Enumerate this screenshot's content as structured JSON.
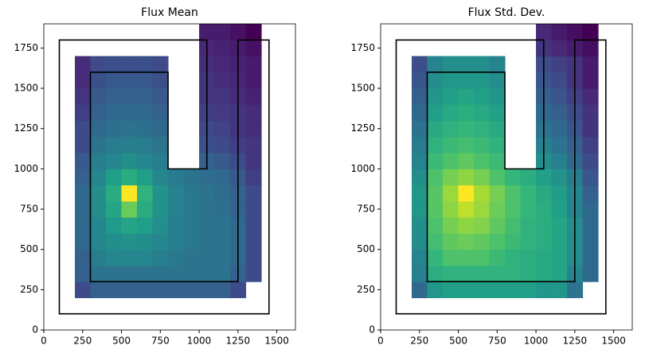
{
  "chart_data": [
    {
      "type": "heatmap",
      "title": "Flux Mean",
      "colormap": "viridis",
      "xlim": [
        0,
        1620
      ],
      "ylim": [
        0,
        1900
      ],
      "xticks": [
        0,
        250,
        500,
        750,
        1000,
        1250,
        1500
      ],
      "yticks": [
        0,
        250,
        500,
        750,
        1000,
        1250,
        1500,
        1750
      ],
      "xbins": [
        200,
        300,
        400,
        500,
        600,
        700,
        800,
        900,
        1000,
        1100,
        1200,
        1300,
        1400
      ],
      "ybins": [
        200,
        300,
        400,
        500,
        600,
        700,
        800,
        900,
        1000,
        1100,
        1200,
        1300,
        1400,
        1500,
        1600,
        1700,
        1800,
        1900
      ],
      "z": [
        [
          0.45,
          0.5,
          0.5,
          0.5,
          0.5,
          0.5,
          0.5,
          0.5,
          0.5,
          0.5,
          0.45,
          null
        ],
        [
          0.5,
          0.55,
          0.55,
          0.55,
          0.55,
          0.55,
          0.55,
          0.55,
          0.55,
          0.55,
          0.5,
          0.45
        ],
        [
          0.5,
          0.58,
          0.6,
          0.6,
          0.6,
          0.58,
          0.56,
          0.55,
          0.55,
          0.55,
          0.52,
          0.45
        ],
        [
          0.52,
          0.6,
          0.62,
          0.63,
          0.62,
          0.6,
          0.58,
          0.56,
          0.55,
          0.55,
          0.52,
          0.45
        ],
        [
          0.52,
          0.6,
          0.65,
          0.68,
          0.66,
          0.62,
          0.58,
          0.56,
          0.55,
          0.55,
          0.52,
          0.45
        ],
        [
          0.52,
          0.62,
          0.68,
          0.8,
          0.7,
          0.63,
          0.59,
          0.56,
          0.55,
          0.54,
          0.5,
          0.45
        ],
        [
          0.52,
          0.62,
          0.7,
          0.95,
          0.72,
          0.63,
          0.59,
          0.56,
          0.55,
          0.53,
          0.5,
          0.45
        ],
        [
          0.5,
          0.6,
          0.66,
          0.7,
          0.66,
          0.6,
          0.57,
          0.55,
          0.53,
          0.52,
          0.48,
          0.42
        ],
        [
          0.48,
          0.58,
          0.6,
          0.62,
          0.6,
          0.58,
          null,
          null,
          0.5,
          0.48,
          0.45,
          0.4
        ],
        [
          0.45,
          0.55,
          0.57,
          0.58,
          0.57,
          0.55,
          null,
          null,
          0.46,
          0.45,
          0.42,
          0.4
        ],
        [
          0.45,
          0.52,
          0.54,
          0.55,
          0.54,
          0.52,
          null,
          null,
          0.44,
          0.43,
          0.4,
          0.38
        ],
        [
          0.42,
          0.5,
          0.52,
          0.52,
          0.52,
          0.5,
          null,
          null,
          0.42,
          0.41,
          0.4,
          0.38
        ],
        [
          0.4,
          0.48,
          0.5,
          0.5,
          0.5,
          0.48,
          null,
          null,
          0.4,
          0.4,
          0.38,
          0.36
        ],
        [
          0.38,
          0.46,
          0.48,
          0.48,
          0.48,
          0.46,
          null,
          null,
          0.4,
          0.38,
          0.37,
          0.35
        ],
        [
          0.38,
          0.45,
          0.46,
          0.46,
          0.46,
          0.45,
          null,
          null,
          0.38,
          0.37,
          0.36,
          0.35
        ],
        [
          null,
          null,
          null,
          null,
          null,
          null,
          null,
          null,
          0.37,
          0.36,
          0.35,
          0.33
        ],
        [
          null,
          null,
          null,
          null,
          null,
          null,
          null,
          null,
          0.35,
          0.35,
          0.33,
          0.3
        ]
      ],
      "outline": {
        "color": "#000000",
        "x": [
          1050,
          1050,
          800,
          800,
          300,
          300,
          1250,
          1250,
          1450,
          1450,
          100,
          100,
          1050
        ],
        "y": [
          1800,
          1000,
          1000,
          1600,
          1600,
          300,
          300,
          1800,
          1800,
          100,
          100,
          1800,
          1800
        ]
      }
    },
    {
      "type": "heatmap",
      "title": "Flux Std. Dev.",
      "colormap": "viridis",
      "xlim": [
        0,
        1620
      ],
      "ylim": [
        0,
        1900
      ],
      "xticks": [
        0,
        250,
        500,
        750,
        1000,
        1250,
        1500
      ],
      "yticks": [
        0,
        250,
        500,
        750,
        1000,
        1250,
        1500,
        1750
      ],
      "xbins": [
        200,
        300,
        400,
        500,
        600,
        700,
        800,
        900,
        1000,
        1100,
        1200,
        1300,
        1400
      ],
      "ybins": [
        200,
        300,
        400,
        500,
        600,
        700,
        800,
        900,
        1000,
        1100,
        1200,
        1300,
        1400,
        1500,
        1600,
        1700,
        1800,
        1900
      ],
      "z": [
        [
          0.6,
          0.7,
          0.72,
          0.72,
          0.72,
          0.72,
          0.72,
          0.72,
          0.7,
          0.7,
          0.62,
          null
        ],
        [
          0.65,
          0.75,
          0.76,
          0.76,
          0.76,
          0.76,
          0.76,
          0.75,
          0.74,
          0.73,
          0.66,
          0.6
        ],
        [
          0.66,
          0.77,
          0.8,
          0.8,
          0.8,
          0.78,
          0.76,
          0.75,
          0.74,
          0.73,
          0.68,
          0.6
        ],
        [
          0.68,
          0.79,
          0.82,
          0.83,
          0.82,
          0.8,
          0.78,
          0.76,
          0.75,
          0.73,
          0.68,
          0.6
        ],
        [
          0.68,
          0.8,
          0.84,
          0.86,
          0.85,
          0.82,
          0.79,
          0.76,
          0.75,
          0.73,
          0.68,
          0.6
        ],
        [
          0.7,
          0.81,
          0.86,
          0.9,
          0.87,
          0.83,
          0.8,
          0.77,
          0.75,
          0.72,
          0.66,
          0.6
        ],
        [
          0.7,
          0.81,
          0.87,
          0.95,
          0.88,
          0.84,
          0.8,
          0.77,
          0.74,
          0.71,
          0.66,
          0.58
        ],
        [
          0.68,
          0.8,
          0.84,
          0.86,
          0.84,
          0.8,
          0.77,
          0.75,
          0.72,
          0.69,
          0.64,
          0.56
        ],
        [
          0.66,
          0.78,
          0.8,
          0.82,
          0.8,
          0.78,
          null,
          null,
          0.68,
          0.65,
          0.6,
          0.54
        ],
        [
          0.64,
          0.76,
          0.78,
          0.79,
          0.78,
          0.76,
          null,
          null,
          0.65,
          0.62,
          0.58,
          0.52
        ],
        [
          0.62,
          0.74,
          0.76,
          0.77,
          0.76,
          0.74,
          null,
          null,
          0.62,
          0.6,
          0.56,
          0.5
        ],
        [
          0.6,
          0.72,
          0.74,
          0.75,
          0.74,
          0.72,
          null,
          null,
          0.6,
          0.58,
          0.54,
          0.5
        ],
        [
          0.58,
          0.7,
          0.72,
          0.73,
          0.72,
          0.7,
          null,
          null,
          0.58,
          0.56,
          0.52,
          0.48
        ],
        [
          0.56,
          0.68,
          0.7,
          0.7,
          0.7,
          0.68,
          null,
          null,
          0.56,
          0.54,
          0.5,
          0.46
        ],
        [
          0.55,
          0.66,
          0.68,
          0.68,
          0.68,
          0.66,
          null,
          null,
          0.54,
          0.52,
          0.5,
          0.46
        ],
        [
          null,
          null,
          null,
          null,
          null,
          null,
          null,
          null,
          0.5,
          0.48,
          0.46,
          0.44
        ],
        [
          null,
          null,
          null,
          null,
          null,
          null,
          null,
          null,
          0.48,
          0.46,
          0.44,
          0.42
        ]
      ],
      "outline": {
        "color": "#000000",
        "x": [
          1050,
          1050,
          800,
          800,
          300,
          300,
          1250,
          1250,
          1450,
          1450,
          100,
          100,
          1050
        ],
        "y": [
          1800,
          1000,
          1000,
          1600,
          1600,
          300,
          300,
          1800,
          1800,
          100,
          100,
          1800,
          1800
        ]
      }
    }
  ]
}
